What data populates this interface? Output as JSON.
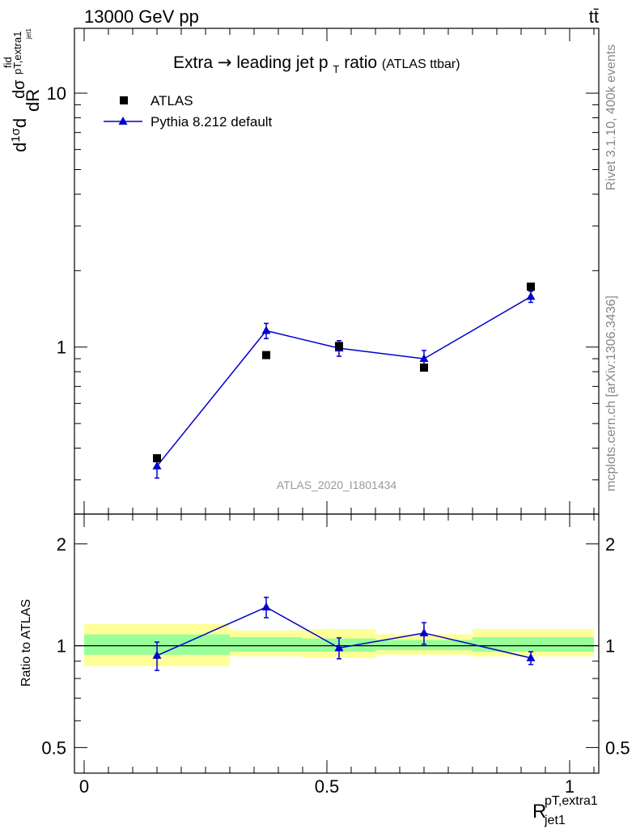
{
  "header": {
    "left": "13000 GeV pp",
    "right": "tt̄"
  },
  "side_labels": {
    "rivet": "Rivet 3.1.10,  400k events",
    "mcplots": "mcplots.cern.ch [arXiv:1306.3436]"
  },
  "watermark": "ATLAS_2020_I1801434",
  "chart_data": [
    {
      "type": "scatter",
      "title": "Extra → leading jet pT ratio",
      "title_main": "Extra",
      "title_arrow": "→",
      "title_mid": " leading jet p",
      "title_sub": "T",
      "title_end": " ratio",
      "subtitle": "(ATLAS ttbar)",
      "ylabel": "dσfid/dRpT,extra1jet1 × 1/σ",
      "y_scale": "log",
      "ylim": [
        0.22,
        18
      ],
      "xlim": [
        -0.02,
        1.06
      ],
      "y_ticks": [
        {
          "value": 1,
          "label": "1"
        },
        {
          "value": 10,
          "label": "10"
        }
      ],
      "legend_position": "top-left",
      "series": [
        {
          "name": "ATLAS",
          "marker": "square",
          "color": "#000000",
          "x": [
            0.15,
            0.375,
            0.525,
            0.7,
            0.92
          ],
          "y": [
            0.365,
            0.93,
            1.01,
            0.83,
            1.73
          ]
        },
        {
          "name": "Pythia 8.212 default",
          "marker": "triangle",
          "color": "#0000cc",
          "x": [
            0.15,
            0.375,
            0.525,
            0.7,
            0.92
          ],
          "y": [
            0.34,
            1.16,
            0.99,
            0.9,
            1.58
          ],
          "err": [
            0.035,
            0.08,
            0.07,
            0.07,
            0.08
          ]
        }
      ]
    },
    {
      "type": "scatter",
      "ylabel": "Ratio to ATLAS",
      "xlabel_main": "R",
      "xlabel_sup": "pT,extra1",
      "xlabel_sub": "jet1",
      "ylim": [
        0.42,
        2.45
      ],
      "xlim": [
        -0.02,
        1.06
      ],
      "y_ticks": [
        {
          "value": 0.5,
          "label": "0.5"
        },
        {
          "value": 1,
          "label": "1"
        },
        {
          "value": 2,
          "label": "2"
        }
      ],
      "x_ticks": [
        {
          "value": 0,
          "label": "0"
        },
        {
          "value": 0.5,
          "label": "0.5"
        },
        {
          "value": 1,
          "label": "1"
        }
      ],
      "bands": [
        {
          "x0": 0.0,
          "x1": 0.3,
          "yellow": [
            0.87,
            1.16
          ],
          "green": [
            0.94,
            1.08
          ]
        },
        {
          "x0": 0.3,
          "x1": 0.45,
          "yellow": [
            0.93,
            1.11
          ],
          "green": [
            0.96,
            1.06
          ]
        },
        {
          "x0": 0.45,
          "x1": 0.6,
          "yellow": [
            0.92,
            1.12
          ],
          "green": [
            0.96,
            1.05
          ]
        },
        {
          "x0": 0.6,
          "x1": 0.8,
          "yellow": [
            0.94,
            1.08
          ],
          "green": [
            0.97,
            1.04
          ]
        },
        {
          "x0": 0.8,
          "x1": 1.05,
          "yellow": [
            0.93,
            1.12
          ],
          "green": [
            0.96,
            1.06
          ]
        }
      ],
      "series": [
        {
          "name": "Pythia 8.212 default",
          "color": "#0000cc",
          "x": [
            0.15,
            0.375,
            0.525,
            0.7,
            0.92
          ],
          "y": [
            0.935,
            1.3,
            0.985,
            1.09,
            0.92
          ],
          "err": [
            0.09,
            0.09,
            0.07,
            0.08,
            0.04
          ]
        }
      ]
    }
  ]
}
